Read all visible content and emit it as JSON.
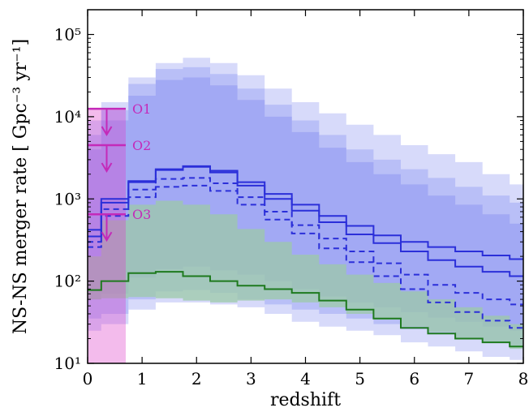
{
  "chart_data": {
    "type": "line",
    "xlabel": "redshift",
    "ylabel": "NS-NS merger rate [ Gpc⁻³ yr⁻¹]",
    "xlim": [
      0,
      8
    ],
    "ylim": [
      10,
      200000
    ],
    "yscale": "log",
    "xticks": [
      "0",
      "1",
      "2",
      "3",
      "4",
      "5",
      "6",
      "7",
      "8"
    ],
    "yticks": [
      {
        "value": 10,
        "label": "10¹"
      },
      {
        "value": 100,
        "label": "10²"
      },
      {
        "value": 1000,
        "label": "10³"
      },
      {
        "value": 10000,
        "label": "10⁴"
      },
      {
        "value": 100000,
        "label": "10⁵"
      }
    ],
    "grid": false,
    "bands": [
      {
        "color": "#d7dafa",
        "x": [
          0,
          0.5,
          1,
          1.5,
          2,
          2.5,
          3,
          3.5,
          4,
          4.5,
          5,
          5.5,
          6,
          6.5,
          7,
          7.5,
          8
        ],
        "upper": [
          9000,
          15000,
          30000,
          45000,
          52000,
          45000,
          32000,
          22000,
          15000,
          11000,
          8000,
          6000,
          4500,
          3500,
          2800,
          2000,
          1500
        ],
        "lower": [
          25,
          30,
          45,
          55,
          55,
          52,
          48,
          40,
          32,
          28,
          25,
          22,
          18,
          16,
          14,
          12,
          11
        ]
      },
      {
        "color": "#b9bff7",
        "x": [
          0,
          0.5,
          1,
          1.5,
          2,
          2.5,
          3,
          3.5,
          4,
          4.5,
          5,
          5.5,
          6,
          6.5,
          7,
          7.5,
          8
        ],
        "upper": [
          6000,
          12000,
          25000,
          38000,
          40000,
          33000,
          22000,
          14000,
          9000,
          6000,
          4000,
          3000,
          2300,
          1800,
          1400,
          1100,
          900
        ],
        "lower": [
          35,
          40,
          60,
          75,
          78,
          72,
          60,
          52,
          45,
          40,
          35,
          30,
          26,
          23,
          20,
          18,
          16
        ]
      },
      {
        "color": "#a2a9f4",
        "x": [
          0,
          0.5,
          1,
          1.5,
          2,
          2.5,
          3,
          3.5,
          4,
          4.5,
          5,
          5.5,
          6,
          6.5,
          7,
          7.5,
          8
        ],
        "upper": [
          4000,
          9000,
          18000,
          28000,
          30000,
          24000,
          16000,
          10000,
          6500,
          4200,
          2800,
          2000,
          1500,
          1100,
          850,
          650,
          500
        ],
        "lower": [
          60,
          70,
          110,
          140,
          150,
          135,
          120,
          100,
          80,
          65,
          55,
          48,
          42,
          36,
          32,
          28,
          25
        ]
      },
      {
        "color": "#9cc9a8",
        "opacity": 0.75,
        "x": [
          0,
          0.5,
          1,
          1.5,
          2,
          2.5,
          3,
          3.5,
          4,
          4.5,
          5,
          5.5,
          6,
          6.5,
          7,
          7.5,
          8
        ],
        "upper": [
          200,
          550,
          850,
          950,
          850,
          650,
          430,
          300,
          210,
          160,
          120,
          95,
          75,
          60,
          48,
          38,
          30
        ],
        "lower": [
          60,
          62,
          64,
          62,
          58,
          55,
          58,
          60,
          55,
          48,
          40,
          34,
          28,
          24,
          20,
          18,
          15
        ]
      }
    ],
    "series": [
      {
        "color": "#2b2fd9",
        "dash": false,
        "x": [
          0,
          0.5,
          1,
          1.5,
          2,
          2.5,
          3,
          3.5,
          4,
          4.5,
          5,
          5.5,
          6,
          6.5,
          7,
          7.5,
          8
        ],
        "values": [
          350,
          900,
          1600,
          2300,
          2500,
          2200,
          1600,
          1150,
          850,
          620,
          470,
          360,
          300,
          260,
          230,
          205,
          185
        ]
      },
      {
        "color": "#2b2fd9",
        "dash": false,
        "x": [
          0,
          0.5,
          1,
          1.5,
          2,
          2.5,
          3,
          3.5,
          4,
          4.5,
          5,
          5.5,
          6,
          6.5,
          7,
          7.5,
          8
        ],
        "values": [
          420,
          1000,
          1650,
          2250,
          2450,
          2100,
          1450,
          1000,
          720,
          520,
          370,
          290,
          230,
          180,
          150,
          130,
          115
        ]
      },
      {
        "color": "#2b2fd9",
        "dash": true,
        "x": [
          0,
          0.5,
          1,
          1.5,
          2,
          2.5,
          3,
          3.5,
          4,
          4.5,
          5,
          5.5,
          6,
          6.5,
          7,
          7.5,
          8
        ],
        "values": [
          300,
          750,
          1300,
          1750,
          1800,
          1550,
          1050,
          700,
          480,
          330,
          230,
          165,
          120,
          90,
          72,
          60,
          52
        ]
      },
      {
        "color": "#2b2fd9",
        "dash": true,
        "x": [
          0,
          0.5,
          1,
          1.5,
          2,
          2.5,
          3,
          3.5,
          4,
          4.5,
          5,
          5.5,
          6,
          6.5,
          7,
          7.5,
          8
        ],
        "values": [
          260,
          620,
          1050,
          1400,
          1450,
          1250,
          850,
          560,
          380,
          250,
          170,
          115,
          80,
          55,
          42,
          33,
          27
        ]
      },
      {
        "color": "#1e7a1e",
        "dash": false,
        "x": [
          0,
          0.5,
          1,
          1.5,
          2,
          2.5,
          3,
          3.5,
          4,
          4.5,
          5,
          5.5,
          6,
          6.5,
          7,
          7.5,
          8
        ],
        "values": [
          78,
          100,
          125,
          130,
          115,
          100,
          88,
          80,
          72,
          58,
          45,
          35,
          27,
          23,
          20,
          18,
          16
        ]
      }
    ],
    "shaded_region": {
      "x": [
        0,
        0.7
      ],
      "y": [
        10,
        12500
      ],
      "color": "#dc3cc8"
    },
    "upper_limits": [
      {
        "label": "O1",
        "value": 12500,
        "x": [
          0,
          0.7
        ]
      },
      {
        "label": "O2",
        "value": 4500,
        "x": [
          0,
          0.7
        ]
      },
      {
        "label": "O3",
        "value": 650,
        "x": [
          0,
          0.7
        ]
      }
    ],
    "limit_color": "#c42ab9"
  }
}
